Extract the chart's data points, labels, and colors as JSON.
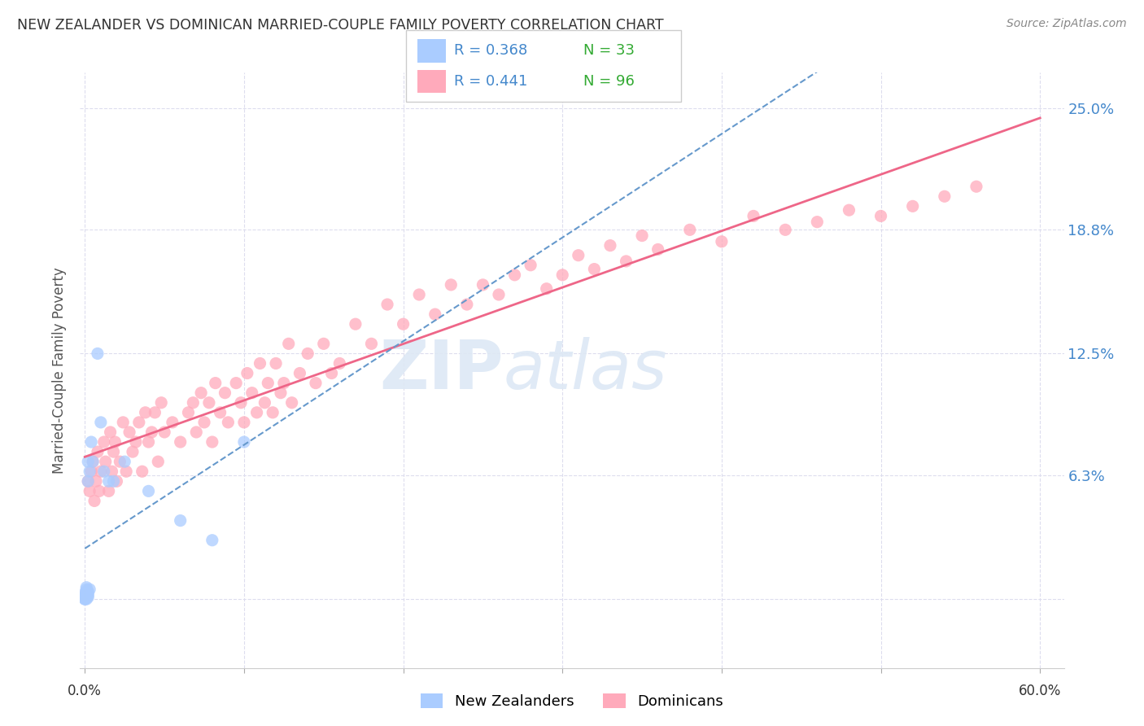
{
  "title": "NEW ZEALANDER VS DOMINICAN MARRIED-COUPLE FAMILY POVERTY CORRELATION CHART",
  "source": "Source: ZipAtlas.com",
  "ylabel": "Married-Couple Family Poverty",
  "yticks": [
    0.0,
    0.063,
    0.125,
    0.188,
    0.25
  ],
  "ytick_labels": [
    "",
    "6.3%",
    "12.5%",
    "18.8%",
    "25.0%"
  ],
  "xlim": [
    -0.003,
    0.615
  ],
  "ylim": [
    -0.035,
    0.268
  ],
  "nz_color": "#aaccff",
  "dom_color": "#ffaabb",
  "nz_line_color": "#6699cc",
  "dom_line_color": "#ee6688",
  "legend_r_nz": "R = 0.368",
  "legend_n_nz": "N = 33",
  "legend_r_dom": "R = 0.441",
  "legend_n_dom": "N = 96",
  "watermark_zip": "ZIP",
  "watermark_atlas": "atlas",
  "background_color": "#ffffff",
  "grid_color": "#ddddee",
  "nz_x": [
    0.0,
    0.0,
    0.0,
    0.0,
    0.0,
    0.0,
    0.001,
    0.001,
    0.001,
    0.001,
    0.001,
    0.001,
    0.001,
    0.002,
    0.002,
    0.002,
    0.002,
    0.002,
    0.002,
    0.003,
    0.003,
    0.004,
    0.005,
    0.008,
    0.01,
    0.012,
    0.015,
    0.018,
    0.025,
    0.04,
    0.06,
    0.08,
    0.1
  ],
  "nz_y": [
    0.0,
    0.0,
    0.001,
    0.001,
    0.002,
    0.003,
    0.0,
    0.001,
    0.002,
    0.003,
    0.004,
    0.005,
    0.006,
    0.001,
    0.002,
    0.003,
    0.004,
    0.06,
    0.07,
    0.005,
    0.065,
    0.08,
    0.07,
    0.125,
    0.09,
    0.065,
    0.06,
    0.06,
    0.07,
    0.055,
    0.04,
    0.03,
    0.08
  ],
  "dom_x": [
    0.002,
    0.003,
    0.004,
    0.005,
    0.006,
    0.007,
    0.008,
    0.009,
    0.01,
    0.012,
    0.013,
    0.015,
    0.016,
    0.017,
    0.018,
    0.019,
    0.02,
    0.022,
    0.024,
    0.026,
    0.028,
    0.03,
    0.032,
    0.034,
    0.036,
    0.038,
    0.04,
    0.042,
    0.044,
    0.046,
    0.048,
    0.05,
    0.055,
    0.06,
    0.065,
    0.068,
    0.07,
    0.073,
    0.075,
    0.078,
    0.08,
    0.082,
    0.085,
    0.088,
    0.09,
    0.095,
    0.098,
    0.1,
    0.102,
    0.105,
    0.108,
    0.11,
    0.113,
    0.115,
    0.118,
    0.12,
    0.123,
    0.125,
    0.128,
    0.13,
    0.135,
    0.14,
    0.145,
    0.15,
    0.155,
    0.16,
    0.17,
    0.18,
    0.19,
    0.2,
    0.21,
    0.22,
    0.23,
    0.24,
    0.25,
    0.26,
    0.27,
    0.28,
    0.29,
    0.3,
    0.31,
    0.32,
    0.33,
    0.34,
    0.35,
    0.36,
    0.38,
    0.4,
    0.42,
    0.44,
    0.46,
    0.48,
    0.5,
    0.52,
    0.54,
    0.56
  ],
  "dom_y": [
    0.06,
    0.055,
    0.065,
    0.07,
    0.05,
    0.06,
    0.075,
    0.055,
    0.065,
    0.08,
    0.07,
    0.055,
    0.085,
    0.065,
    0.075,
    0.08,
    0.06,
    0.07,
    0.09,
    0.065,
    0.085,
    0.075,
    0.08,
    0.09,
    0.065,
    0.095,
    0.08,
    0.085,
    0.095,
    0.07,
    0.1,
    0.085,
    0.09,
    0.08,
    0.095,
    0.1,
    0.085,
    0.105,
    0.09,
    0.1,
    0.08,
    0.11,
    0.095,
    0.105,
    0.09,
    0.11,
    0.1,
    0.09,
    0.115,
    0.105,
    0.095,
    0.12,
    0.1,
    0.11,
    0.095,
    0.12,
    0.105,
    0.11,
    0.13,
    0.1,
    0.115,
    0.125,
    0.11,
    0.13,
    0.115,
    0.12,
    0.14,
    0.13,
    0.15,
    0.14,
    0.155,
    0.145,
    0.16,
    0.15,
    0.16,
    0.155,
    0.165,
    0.17,
    0.158,
    0.165,
    0.175,
    0.168,
    0.18,
    0.172,
    0.185,
    0.178,
    0.188,
    0.182,
    0.195,
    0.188,
    0.192,
    0.198,
    0.195,
    0.2,
    0.205,
    0.21
  ]
}
